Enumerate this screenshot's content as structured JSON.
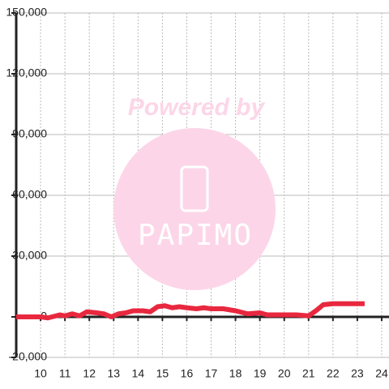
{
  "chart_data": {
    "type": "line",
    "x": [
      9.0,
      10.0,
      10.3,
      10.8,
      11.0,
      11.3,
      11.6,
      11.9,
      12.3,
      12.6,
      12.9,
      13.2,
      13.5,
      13.8,
      14.2,
      14.5,
      14.8,
      15.1,
      15.4,
      15.7,
      16.0,
      16.4,
      16.7,
      17.0,
      17.5,
      18.0,
      18.5,
      19.0,
      19.3,
      20.0,
      20.5,
      21.0,
      21.3,
      21.6,
      22.0,
      22.5,
      23.3
    ],
    "series": [
      {
        "color": "#e8283f",
        "values": [
          0,
          0,
          -500,
          1000,
          500,
          1500,
          500,
          2500,
          2000,
          1500,
          0,
          1500,
          2000,
          3000,
          3000,
          2500,
          5000,
          5500,
          4500,
          5000,
          4500,
          4000,
          4500,
          4000,
          4000,
          3000,
          1500,
          2000,
          1000,
          1000,
          1000,
          500,
          3000,
          6000,
          6500,
          6500,
          6500
        ]
      }
    ],
    "xlim": [
      9.0,
      24.3
    ],
    "xticks": [
      10,
      11,
      12,
      13,
      14,
      15,
      16,
      17,
      18,
      19,
      20,
      21,
      22,
      23,
      24
    ],
    "ylim": [
      -20000,
      150000
    ],
    "yticks": [
      {
        "value": -20000,
        "label": "-20,000"
      },
      0,
      {
        "value": 30000,
        "label": "30,000"
      },
      {
        "value": 60000,
        "label": "60,000"
      },
      {
        "value": 90000,
        "label": "90,000"
      },
      {
        "value": 120000,
        "label": "120,000"
      },
      {
        "value": 150000,
        "label": "150,000"
      }
    ],
    "grid": true,
    "watermark": {
      "line1": "Powered by",
      "line2": "PAPIMO"
    }
  }
}
